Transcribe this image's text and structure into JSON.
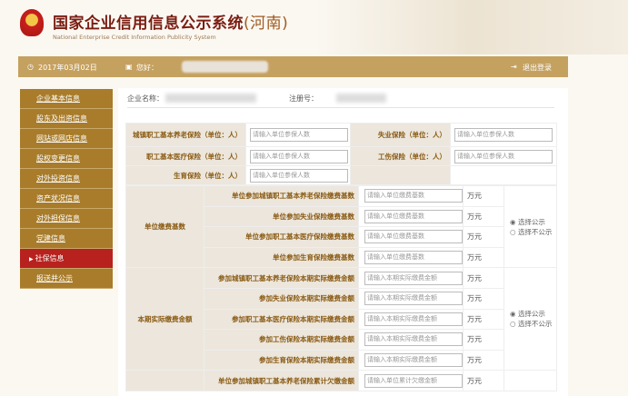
{
  "header": {
    "title": "国家企业信用信息公示系统",
    "province": "(河南)",
    "subtitle": "National Enterprise Credit Information Publicity System"
  },
  "bar": {
    "date": "2017年03月02日",
    "greeting": "您好：",
    "logout": "退出登录"
  },
  "sidebar": {
    "items": [
      "企业基本信息",
      "股东及出资信息",
      "网站或网店信息",
      "股权变更信息",
      "对外投资信息",
      "资产状况信息",
      "对外担保信息",
      "党建信息",
      "社保信息",
      "报送并公示"
    ],
    "active": "社保信息"
  },
  "company": {
    "name_label": "企业名称：",
    "reg_label": "注册号："
  },
  "insured": {
    "rows": [
      {
        "left": "城镇职工基本养老保险（单位：人）",
        "left_ph": "请输入单位参保人数",
        "right": "失业保险（单位：人）",
        "right_ph": "请输入单位参保人数"
      },
      {
        "left": "职工基本医疗保险（单位：人）",
        "left_ph": "请输入单位参保人数",
        "right": "工伤保险（单位：人）",
        "right_ph": "请输入单位参保人数"
      },
      {
        "left": "生育保险（单位：人）",
        "left_ph": "请输入单位参保人数"
      }
    ]
  },
  "unit": "万元",
  "radio": {
    "public": "选择公示",
    "private": "选择不公示"
  },
  "groups": [
    {
      "label": "单位缴费基数",
      "placeholder": "请输入单位缴费基数",
      "rows": [
        "单位参加城镇职工基本养老保险缴费基数",
        "单位参加失业保险缴费基数",
        "单位参加职工基本医疗保险缴费基数",
        "单位参加生育保险缴费基数"
      ]
    },
    {
      "label": "本期实际缴费金额",
      "placeholder": "请输入本期实际缴费金额",
      "rows": [
        "参加城镇职工基本养老保险本期实际缴费金额",
        "参加失业保险本期实际缴费金额",
        "参加职工基本医疗保险本期实际缴费金额",
        "参加工伤保险本期实际缴费金额",
        "参加生育保险本期实际缴费金额"
      ]
    },
    {
      "label": "",
      "placeholder": "请输入单位累计欠缴金额",
      "rows": [
        "单位参加城镇职工基本养老保险累计欠缴金额"
      ]
    }
  ]
}
